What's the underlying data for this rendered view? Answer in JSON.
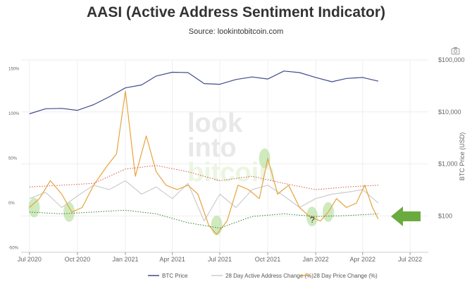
{
  "chart_data": {
    "type": "line",
    "title": "AASI (Active Address Sentiment Indicator)",
    "subtitle": "Source: lookintobitcoin.com",
    "watermark": [
      "look",
      "into",
      "bitcoin"
    ],
    "xlabel": "",
    "ylabel_right": "BTC Price (USD)",
    "x_ticks": [
      "Jul 2020",
      "Oct 2020",
      "Jan 2021",
      "Apr 2021",
      "Jul 2021",
      "Oct 2021",
      "Jan 2022",
      "Apr 2022",
      "Jul 2022"
    ],
    "y_left_ticks": [
      "150%",
      "100%",
      "50%",
      "0%",
      "-50%"
    ],
    "y_left_range": [
      -55,
      160
    ],
    "y_right_ticks": [
      "$100,000",
      "$10,000",
      "$1,000",
      "$100"
    ],
    "y_right_scale": "log",
    "y_right_range": [
      20,
      100000
    ],
    "legend_placement": "bottom",
    "grid": true,
    "annotation_question": "?",
    "colors": {
      "btc_price": "#3f4b8c",
      "address_change": "#cccccc",
      "price_change": "#e8a33c",
      "band_upper": "#d9534f",
      "band_lower": "#2e7d32",
      "highlight": "#a8d88a",
      "arrow": "#6aab3f"
    },
    "series": [
      {
        "name": "BTC Price",
        "axis": "right",
        "x": [
          "2020-07-01",
          "2020-08-01",
          "2020-09-01",
          "2020-10-01",
          "2020-11-01",
          "2020-12-01",
          "2021-01-01",
          "2021-02-01",
          "2021-03-01",
          "2021-04-01",
          "2021-05-01",
          "2021-06-01",
          "2021-07-01",
          "2021-08-01",
          "2021-09-01",
          "2021-10-01",
          "2021-11-01",
          "2021-12-01",
          "2022-01-01",
          "2022-02-01",
          "2022-03-01",
          "2022-04-01",
          "2022-05-01"
        ],
        "values": [
          9200,
          11500,
          11700,
          10700,
          13800,
          19500,
          29000,
          33000,
          49000,
          58000,
          57000,
          35000,
          34000,
          42000,
          47000,
          43000,
          61000,
          57000,
          46000,
          38000,
          44000,
          46000,
          39000
        ]
      },
      {
        "name": "28 Day Active Address Change (%)",
        "axis": "left",
        "x": [
          "2020-07-01",
          "2020-08-01",
          "2020-09-01",
          "2020-10-01",
          "2020-11-01",
          "2020-12-01",
          "2021-01-01",
          "2021-02-01",
          "2021-03-01",
          "2021-04-01",
          "2021-05-01",
          "2021-06-01",
          "2021-07-01",
          "2021-08-01",
          "2021-09-01",
          "2021-10-01",
          "2021-11-01",
          "2021-12-01",
          "2022-01-01",
          "2022-02-01",
          "2022-03-01",
          "2022-04-01",
          "2022-05-01"
        ],
        "values": [
          5,
          12,
          -5,
          8,
          20,
          15,
          25,
          10,
          18,
          5,
          22,
          -20,
          10,
          -5,
          15,
          20,
          8,
          -5,
          5,
          10,
          12,
          15,
          0
        ]
      },
      {
        "name": "28 Day Price Change (%)",
        "axis": "left",
        "x": [
          "2020-07-01",
          "2020-07-20",
          "2020-08-10",
          "2020-09-01",
          "2020-09-20",
          "2020-10-10",
          "2020-11-01",
          "2020-11-25",
          "2020-12-15",
          "2021-01-01",
          "2021-01-20",
          "2021-02-10",
          "2021-03-01",
          "2021-03-20",
          "2021-04-10",
          "2021-05-01",
          "2021-05-20",
          "2021-06-10",
          "2021-06-25",
          "2021-07-15",
          "2021-08-05",
          "2021-08-25",
          "2021-09-15",
          "2021-10-01",
          "2021-10-20",
          "2021-11-10",
          "2021-12-01",
          "2021-12-20",
          "2022-01-10",
          "2022-01-25",
          "2022-02-10",
          "2022-03-01",
          "2022-03-20",
          "2022-04-05",
          "2022-04-20",
          "2022-05-01"
        ],
        "values": [
          -5,
          5,
          25,
          10,
          -10,
          -5,
          20,
          40,
          55,
          125,
          30,
          75,
          35,
          20,
          15,
          20,
          10,
          -25,
          -35,
          -20,
          20,
          15,
          5,
          50,
          10,
          20,
          -5,
          -15,
          -20,
          -10,
          5,
          -5,
          0,
          20,
          -5,
          -18
        ]
      },
      {
        "axis": "left",
        "style": "dotted",
        "x": [
          "2020-07-01",
          "2020-09-01",
          "2020-11-01",
          "2021-01-01",
          "2021-03-01",
          "2021-05-01",
          "2021-07-01",
          "2021-09-01",
          "2021-11-01",
          "2022-01-01",
          "2022-03-01",
          "2022-05-01"
        ],
        "values": [
          18,
          20,
          22,
          38,
          42,
          35,
          25,
          30,
          22,
          15,
          18,
          20
        ]
      },
      {
        "axis": "left",
        "style": "dotted",
        "x": [
          "2020-07-01",
          "2020-09-01",
          "2020-11-01",
          "2021-01-01",
          "2021-03-01",
          "2021-05-01",
          "2021-07-01",
          "2021-09-01",
          "2021-11-01",
          "2022-01-01",
          "2022-03-01",
          "2022-05-01"
        ],
        "values": [
          -10,
          -12,
          -10,
          -8,
          -12,
          -22,
          -28,
          -15,
          -12,
          -15,
          -14,
          -12
        ]
      }
    ]
  }
}
